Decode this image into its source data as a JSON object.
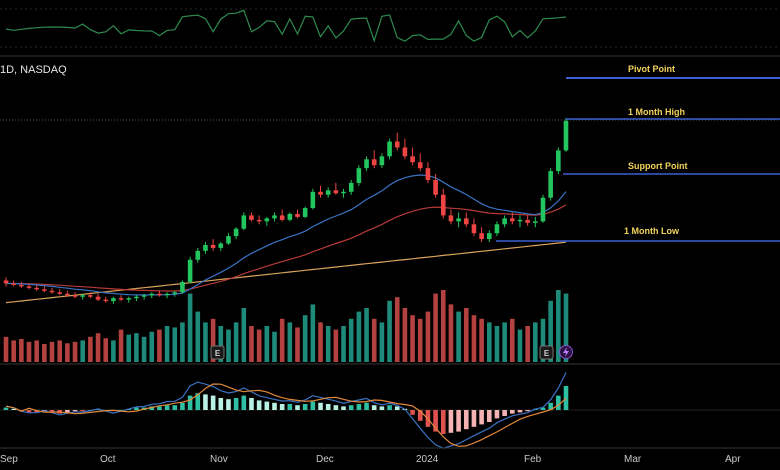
{
  "header": {
    "ticker_label": "1D, NASDAQ"
  },
  "levels": [
    {
      "label": "Pivot Point"
    },
    {
      "label": "1 Month High"
    },
    {
      "label": "Support Point"
    },
    {
      "label": "1 Month Low"
    }
  ],
  "badges": {
    "earnings_label": "E",
    "lightning_icon": "lightning-icon"
  },
  "colors": {
    "up": "#22c55e",
    "down": "#ef4444",
    "vol_up": "#1e8a7a",
    "vol_down": "#b3413f",
    "ema_fast": "#3b73c4",
    "ema_mid": "#b83a3a",
    "ema_slow": "#d9a35a",
    "level_line": "#3a5fd0",
    "level_text": "#f2d45c",
    "rsi": "#2f8a4f"
  },
  "chart_data": {
    "type": "candlestick",
    "x_axis_labels": [
      "Sep",
      "Oct",
      "Nov",
      "Dec",
      "2024",
      "Feb",
      "Mar",
      "Apr"
    ],
    "price_candles": [
      [
        2.5,
        2.6,
        2.3,
        2.4
      ],
      [
        2.4,
        2.5,
        2.3,
        2.35
      ],
      [
        2.35,
        2.45,
        2.25,
        2.3
      ],
      [
        2.3,
        2.4,
        2.2,
        2.25
      ],
      [
        2.25,
        2.35,
        2.15,
        2.2
      ],
      [
        2.2,
        2.3,
        2.1,
        2.15
      ],
      [
        2.15,
        2.25,
        2.05,
        2.1
      ],
      [
        2.1,
        2.2,
        2.0,
        2.05
      ],
      [
        2.05,
        2.15,
        1.95,
        2.0
      ],
      [
        2.0,
        2.1,
        1.9,
        1.95
      ],
      [
        1.95,
        2.05,
        1.85,
        2.0
      ],
      [
        2.0,
        2.1,
        1.9,
        1.95
      ],
      [
        1.95,
        2.05,
        1.8,
        1.85
      ],
      [
        1.85,
        1.95,
        1.75,
        1.8
      ],
      [
        1.8,
        1.95,
        1.7,
        1.9
      ],
      [
        1.9,
        2.0,
        1.8,
        1.85
      ],
      [
        1.85,
        1.95,
        1.75,
        1.9
      ],
      [
        1.9,
        2.0,
        1.8,
        1.95
      ],
      [
        1.95,
        2.05,
        1.85,
        2.0
      ],
      [
        2.0,
        2.1,
        1.9,
        2.05
      ],
      [
        2.05,
        2.15,
        1.95,
        2.0
      ],
      [
        2.0,
        2.1,
        1.9,
        2.05
      ],
      [
        2.05,
        2.15,
        1.95,
        2.1
      ],
      [
        2.1,
        2.5,
        2.05,
        2.45
      ],
      [
        2.45,
        3.3,
        2.4,
        3.2
      ],
      [
        3.2,
        3.6,
        3.1,
        3.5
      ],
      [
        3.5,
        3.8,
        3.4,
        3.7
      ],
      [
        3.7,
        3.9,
        3.5,
        3.6
      ],
      [
        3.6,
        3.8,
        3.5,
        3.75
      ],
      [
        3.75,
        4.1,
        3.7,
        4.0
      ],
      [
        4.0,
        4.3,
        3.9,
        4.25
      ],
      [
        4.25,
        4.8,
        4.2,
        4.7
      ],
      [
        4.7,
        4.8,
        4.5,
        4.55
      ],
      [
        4.55,
        4.7,
        4.4,
        4.5
      ],
      [
        4.5,
        4.65,
        4.35,
        4.6
      ],
      [
        4.6,
        4.8,
        4.5,
        4.7
      ],
      [
        4.7,
        4.9,
        4.5,
        4.55
      ],
      [
        4.55,
        4.8,
        4.5,
        4.75
      ],
      [
        4.75,
        4.9,
        4.6,
        4.65
      ],
      [
        4.65,
        5.0,
        4.6,
        4.95
      ],
      [
        4.95,
        5.6,
        4.9,
        5.5
      ],
      [
        5.5,
        5.7,
        5.3,
        5.4
      ],
      [
        5.4,
        5.65,
        5.3,
        5.55
      ],
      [
        5.55,
        5.8,
        5.4,
        5.45
      ],
      [
        5.45,
        5.6,
        5.3,
        5.5
      ],
      [
        5.5,
        5.9,
        5.4,
        5.8
      ],
      [
        5.8,
        6.4,
        5.7,
        6.3
      ],
      [
        6.3,
        6.7,
        6.2,
        6.6
      ],
      [
        6.6,
        6.9,
        6.3,
        6.4
      ],
      [
        6.4,
        6.8,
        6.3,
        6.7
      ],
      [
        6.7,
        7.3,
        6.6,
        7.2
      ],
      [
        7.2,
        7.5,
        6.9,
        7.0
      ],
      [
        7.0,
        7.3,
        6.6,
        6.7
      ],
      [
        6.7,
        7.0,
        6.4,
        6.5
      ],
      [
        6.5,
        6.8,
        6.2,
        6.3
      ],
      [
        6.3,
        6.5,
        5.8,
        5.9
      ],
      [
        5.9,
        6.1,
        5.3,
        5.4
      ],
      [
        5.4,
        5.6,
        4.6,
        4.7
      ],
      [
        4.7,
        4.9,
        4.4,
        4.5
      ],
      [
        4.5,
        4.8,
        4.3,
        4.6
      ],
      [
        4.6,
        4.8,
        4.3,
        4.4
      ],
      [
        4.4,
        4.6,
        4.0,
        4.1
      ],
      [
        4.1,
        4.3,
        3.8,
        3.9
      ],
      [
        3.9,
        4.2,
        3.8,
        4.1
      ],
      [
        4.1,
        4.5,
        4.0,
        4.4
      ],
      [
        4.4,
        4.7,
        4.3,
        4.6
      ],
      [
        4.6,
        4.8,
        4.4,
        4.5
      ],
      [
        4.5,
        4.7,
        4.3,
        4.55
      ],
      [
        4.55,
        4.7,
        4.35,
        4.45
      ],
      [
        4.45,
        4.65,
        4.3,
        4.5
      ],
      [
        4.5,
        5.4,
        4.45,
        5.3
      ],
      [
        5.3,
        6.3,
        5.2,
        6.2
      ],
      [
        6.2,
        7.0,
        6.1,
        6.9
      ],
      [
        6.9,
        8.0,
        6.85,
        7.9
      ]
    ],
    "level_lines": [
      "Pivot Point",
      "1 Month High",
      "Support Point",
      "1 Month Low"
    ],
    "moving_averages": [
      "fast",
      "mid",
      "slow"
    ],
    "volume": [
      0.35,
      0.3,
      0.32,
      0.28,
      0.3,
      0.25,
      0.28,
      0.3,
      0.26,
      0.28,
      0.3,
      0.35,
      0.4,
      0.33,
      0.3,
      0.45,
      0.38,
      0.4,
      0.35,
      0.42,
      0.45,
      0.5,
      0.48,
      0.55,
      0.95,
      0.7,
      0.55,
      0.6,
      0.5,
      0.45,
      0.55,
      0.75,
      0.5,
      0.45,
      0.5,
      0.42,
      0.6,
      0.55,
      0.48,
      0.65,
      0.8,
      0.55,
      0.5,
      0.45,
      0.5,
      0.6,
      0.7,
      0.75,
      0.6,
      0.55,
      0.85,
      0.9,
      0.75,
      0.65,
      0.6,
      0.7,
      0.95,
      1.0,
      0.8,
      0.7,
      0.75,
      0.65,
      0.6,
      0.55,
      0.5,
      0.55,
      0.6,
      0.45,
      0.5,
      0.55,
      0.6,
      0.85,
      1.0,
      0.95
    ],
    "macd_histogram": [
      0.02,
      0.01,
      -0.01,
      -0.02,
      -0.02,
      -0.01,
      -0.02,
      -0.03,
      -0.02,
      -0.01,
      -0.01,
      0.0,
      0.01,
      0.0,
      -0.01,
      0.0,
      0.01,
      0.02,
      0.02,
      0.03,
      0.03,
      0.04,
      0.04,
      0.06,
      0.12,
      0.14,
      0.13,
      0.12,
      0.1,
      0.09,
      0.1,
      0.12,
      0.1,
      0.08,
      0.07,
      0.06,
      0.05,
      0.05,
      0.04,
      0.05,
      0.07,
      0.06,
      0.05,
      0.04,
      0.03,
      0.04,
      0.05,
      0.06,
      0.04,
      0.03,
      0.04,
      0.03,
      0.01,
      -0.04,
      -0.09,
      -0.14,
      -0.18,
      -0.2,
      -0.19,
      -0.18,
      -0.16,
      -0.14,
      -0.12,
      -0.1,
      -0.07,
      -0.05,
      -0.03,
      -0.02,
      -0.01,
      0.01,
      0.02,
      0.06,
      0.12,
      0.2
    ]
  }
}
